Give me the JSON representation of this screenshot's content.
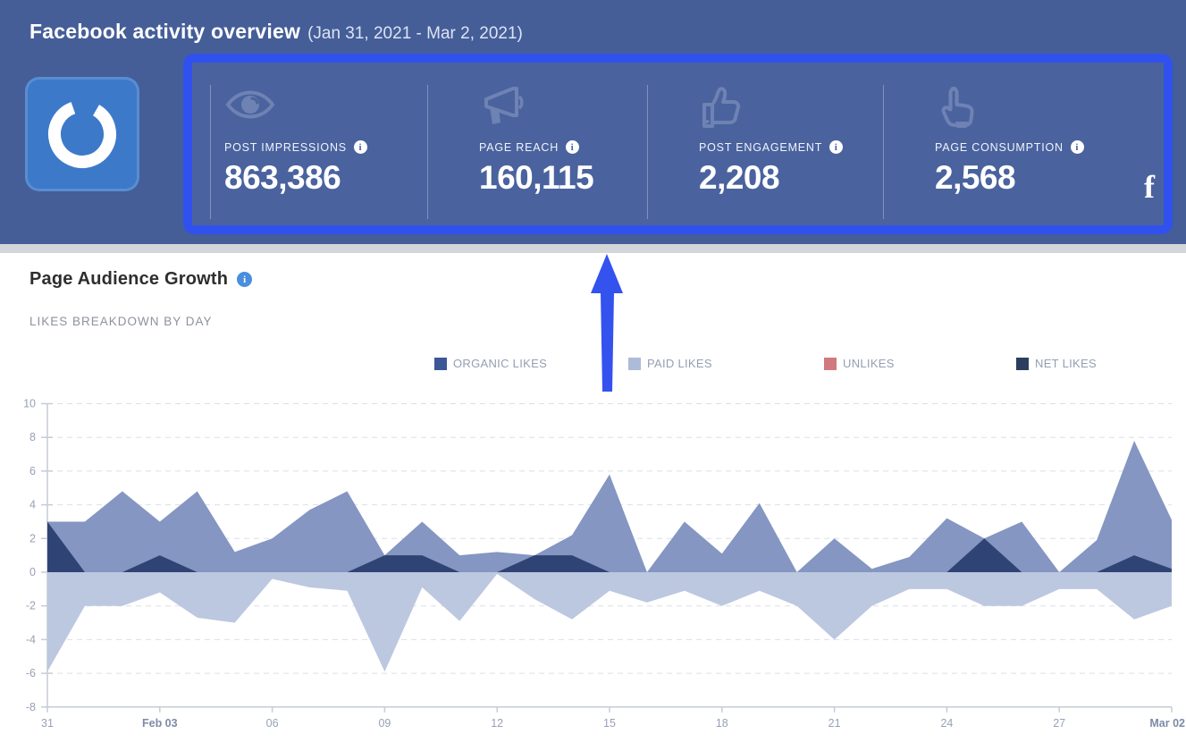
{
  "header": {
    "title": "Facebook activity overview",
    "date_range": "(Jan 31, 2021 - Mar 2, 2021)",
    "network_badge": "f"
  },
  "stats": {
    "items": [
      {
        "label": "POST IMPRESSIONS",
        "value": "863,386",
        "icon": "eye-icon",
        "info": "i"
      },
      {
        "label": "PAGE REACH",
        "value": "160,115",
        "icon": "megaphone-icon",
        "info": "i"
      },
      {
        "label": "POST ENGAGEMENT",
        "value": "2,208",
        "icon": "thumbs-up-icon",
        "info": "i"
      },
      {
        "label": "PAGE CONSUMPTION",
        "value": "2,568",
        "icon": "click-hand-icon",
        "info": "i"
      }
    ]
  },
  "section": {
    "title": "Page Audience Growth",
    "info": "i",
    "subtitle": "LIKES BREAKDOWN BY DAY"
  },
  "annotation_arrow": {
    "color": "#3352ee"
  },
  "colors": {
    "header_bg": "#455e98",
    "panel_border": "#3051ee",
    "logo_bg": "#3d79c9",
    "gridline": "#dcdfe6",
    "axis": "#c6cbd6"
  },
  "chart_data": {
    "type": "area",
    "title": "Page Audience Growth - likes breakdown by day",
    "x": [
      "31",
      "Feb 01",
      "Feb 02",
      "Feb 03",
      "Feb 04",
      "Feb 05",
      "Feb 06",
      "Feb 07",
      "Feb 08",
      "Feb 09",
      "Feb 10",
      "Feb 11",
      "Feb 12",
      "Feb 13",
      "Feb 14",
      "Feb 15",
      "Feb 16",
      "Feb 17",
      "Feb 18",
      "Feb 19",
      "Feb 20",
      "Feb 21",
      "Feb 22",
      "Feb 23",
      "Feb 24",
      "Feb 25",
      "Feb 26",
      "Feb 27",
      "Feb 28",
      "Mar 01",
      "Mar 02"
    ],
    "x_ticks": [
      {
        "index": 0,
        "label": "31",
        "bold": false
      },
      {
        "index": 3,
        "label": "Feb 03",
        "bold": true
      },
      {
        "index": 6,
        "label": "06",
        "bold": false
      },
      {
        "index": 9,
        "label": "09",
        "bold": false
      },
      {
        "index": 12,
        "label": "12",
        "bold": false
      },
      {
        "index": 15,
        "label": "15",
        "bold": false
      },
      {
        "index": 18,
        "label": "18",
        "bold": false
      },
      {
        "index": 21,
        "label": "21",
        "bold": false
      },
      {
        "index": 24,
        "label": "24",
        "bold": false
      },
      {
        "index": 27,
        "label": "27",
        "bold": false
      },
      {
        "index": 30,
        "label": "Mar 02",
        "bold": true
      }
    ],
    "y_ticks": [
      10,
      8,
      6,
      4,
      2,
      0,
      -2,
      -4,
      -6,
      -8
    ],
    "ylim": [
      -8,
      10
    ],
    "grid": "dashed",
    "legend_position": "top",
    "series": [
      {
        "name": "ORGANIC LIKES",
        "color": "#3b5795",
        "fill": "#8496c1",
        "z": 2,
        "values": [
          3,
          3,
          4.8,
          3,
          4.8,
          1.2,
          2,
          3.7,
          4.8,
          1,
          3,
          1,
          1.2,
          1,
          2.2,
          5.8,
          0,
          3,
          1.1,
          4.1,
          0,
          2,
          0.2,
          0.9,
          3.2,
          2,
          3,
          0,
          1.9,
          7.8,
          3.1
        ]
      },
      {
        "name": "PAID LIKES",
        "color": "#aebbd8",
        "fill": "#bcc7e0",
        "z": 1,
        "values": [
          -5.9,
          -2,
          -2,
          -1.2,
          -2.7,
          -3,
          -0.4,
          -0.9,
          -1.1,
          -5.9,
          -0.9,
          -2.9,
          -0.1,
          -1.6,
          -2.8,
          -1.1,
          -1.8,
          -1.1,
          -2,
          -1.1,
          -2,
          -4,
          -2,
          -1,
          -1,
          -2,
          -2,
          -1,
          -1,
          -2.8,
          -2
        ]
      },
      {
        "name": "UNLIKES",
        "color": "#d0797f",
        "fill": "#d0797f",
        "z": 0,
        "values": [
          0,
          0,
          0,
          0,
          0,
          0,
          0,
          0,
          0,
          0,
          0,
          0,
          0,
          0,
          0,
          0,
          0,
          0,
          0,
          0,
          0,
          0,
          0,
          0,
          0,
          0,
          0,
          0,
          0,
          0,
          0
        ]
      },
      {
        "name": "NET LIKES",
        "color": "#2b3e5f",
        "fill": "#2f4474",
        "z": 3,
        "values": [
          3,
          0,
          0,
          1,
          0,
          0,
          0,
          0,
          0,
          1,
          1,
          0,
          0,
          1,
          1,
          0,
          0,
          0,
          0,
          0,
          0,
          0,
          0,
          0,
          0,
          2,
          0,
          0,
          0,
          1,
          0.2
        ]
      }
    ]
  }
}
